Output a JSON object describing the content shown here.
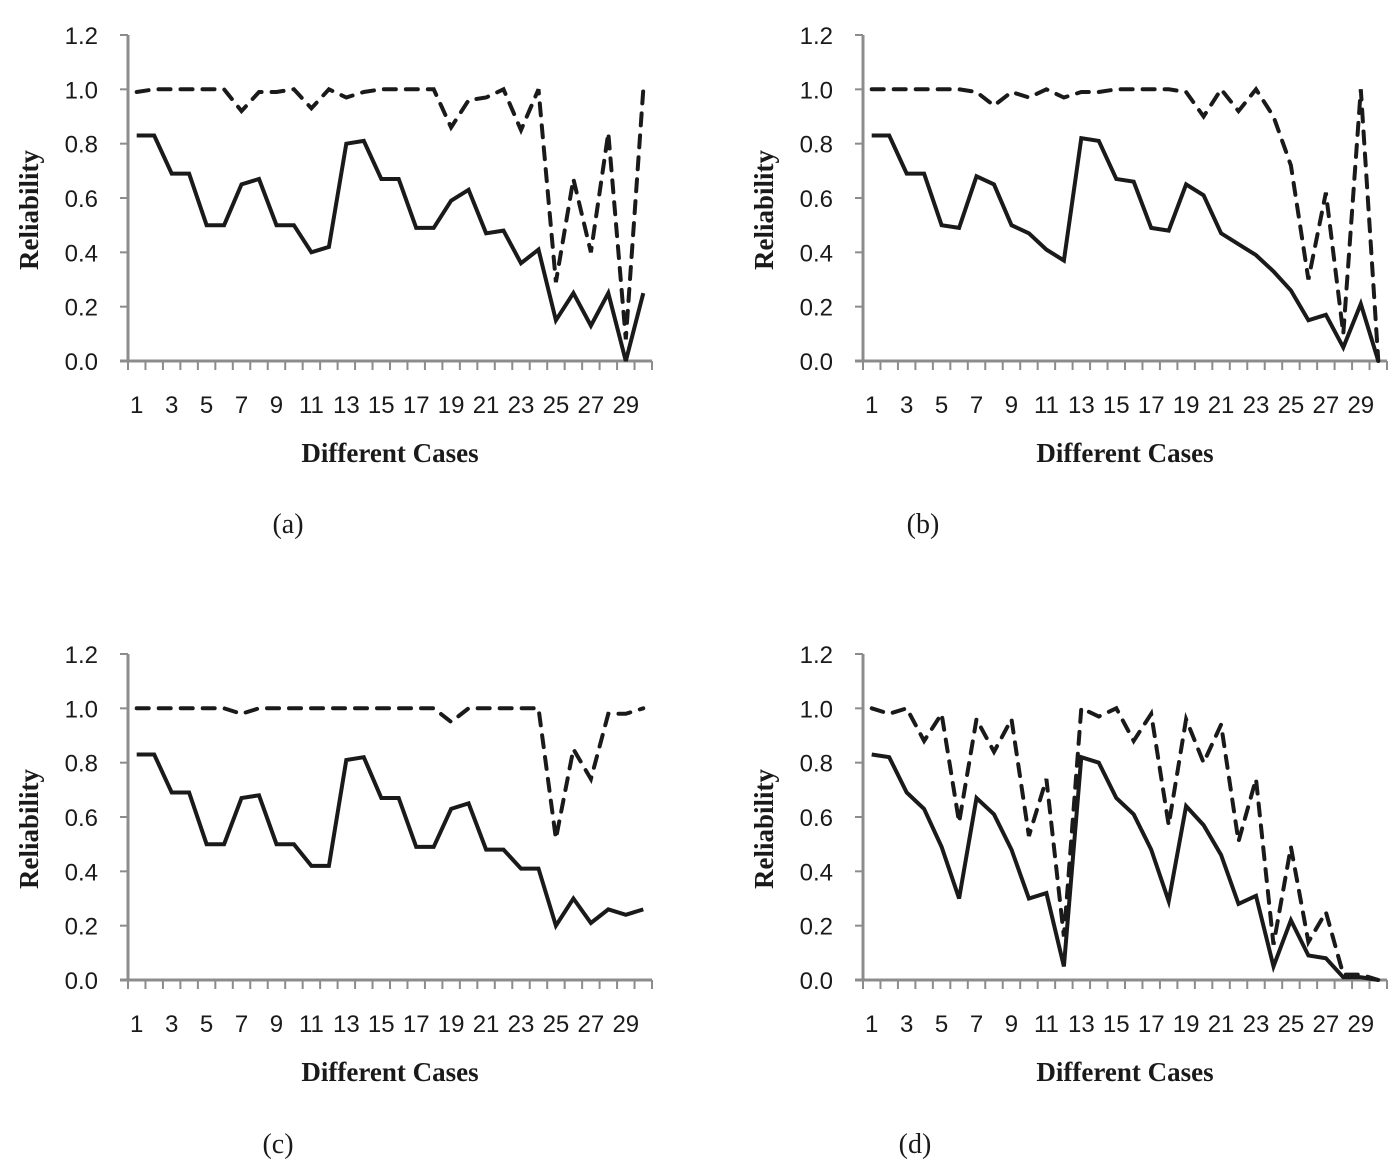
{
  "chart_data": [
    {
      "type": "line",
      "caption": "(a)",
      "xlabel": "Different Cases",
      "ylabel": "Reliability",
      "ylim": [
        0,
        1.2
      ],
      "yticks": [
        "0.0",
        "0.2",
        "0.4",
        "0.6",
        "0.8",
        "1.0",
        "1.2"
      ],
      "xtick_labels": [
        "1",
        "3",
        "5",
        "7",
        "9",
        "11",
        "13",
        "15",
        "17",
        "19",
        "21",
        "23",
        "25",
        "27",
        "29"
      ],
      "categories": [
        1,
        2,
        3,
        4,
        5,
        6,
        7,
        8,
        9,
        10,
        11,
        12,
        13,
        14,
        15,
        16,
        17,
        18,
        19,
        20,
        21,
        22,
        23,
        24,
        25,
        26,
        27,
        28,
        29,
        30
      ],
      "grid": false,
      "legend": "none",
      "series": [
        {
          "name": "solid",
          "style": "solid",
          "values": [
            0.83,
            0.83,
            0.69,
            0.69,
            0.5,
            0.5,
            0.65,
            0.67,
            0.5,
            0.5,
            0.4,
            0.42,
            0.8,
            0.81,
            0.67,
            0.67,
            0.49,
            0.49,
            0.59,
            0.63,
            0.47,
            0.48,
            0.36,
            0.41,
            0.15,
            0.25,
            0.13,
            0.25,
            0.0,
            0.25
          ]
        },
        {
          "name": "dashed",
          "style": "dashed",
          "values": [
            0.99,
            1.0,
            1.0,
            1.0,
            1.0,
            1.0,
            0.92,
            0.99,
            0.99,
            1.0,
            0.93,
            1.0,
            0.97,
            0.99,
            1.0,
            1.0,
            1.0,
            1.0,
            0.86,
            0.96,
            0.97,
            1.0,
            0.85,
            1.0,
            0.29,
            0.67,
            0.4,
            0.84,
            0.08,
            1.0
          ]
        }
      ]
    },
    {
      "type": "line",
      "caption": "(b)",
      "xlabel": "Different Cases",
      "ylabel": "Reliability",
      "ylim": [
        0,
        1.2
      ],
      "yticks": [
        "0.0",
        "0.2",
        "0.4",
        "0.6",
        "0.8",
        "1.0",
        "1.2"
      ],
      "xtick_labels": [
        "1",
        "3",
        "5",
        "7",
        "9",
        "11",
        "13",
        "15",
        "17",
        "19",
        "21",
        "23",
        "25",
        "27",
        "29"
      ],
      "categories": [
        1,
        2,
        3,
        4,
        5,
        6,
        7,
        8,
        9,
        10,
        11,
        12,
        13,
        14,
        15,
        16,
        17,
        18,
        19,
        20,
        21,
        22,
        23,
        24,
        25,
        26,
        27,
        28,
        29,
        30
      ],
      "grid": false,
      "legend": "none",
      "series": [
        {
          "name": "solid",
          "style": "solid",
          "values": [
            0.83,
            0.83,
            0.69,
            0.69,
            0.5,
            0.49,
            0.68,
            0.65,
            0.5,
            0.47,
            0.41,
            0.37,
            0.82,
            0.81,
            0.67,
            0.66,
            0.49,
            0.48,
            0.65,
            0.61,
            0.47,
            0.43,
            0.39,
            0.33,
            0.26,
            0.15,
            0.17,
            0.05,
            0.21,
            0.0
          ]
        },
        {
          "name": "dashed",
          "style": "dashed",
          "values": [
            1.0,
            1.0,
            1.0,
            1.0,
            1.0,
            1.0,
            0.99,
            0.94,
            0.99,
            0.97,
            1.0,
            0.97,
            0.99,
            0.99,
            1.0,
            1.0,
            1.0,
            1.0,
            0.99,
            0.9,
            1.0,
            0.92,
            1.0,
            0.9,
            0.72,
            0.3,
            0.62,
            0.1,
            1.0,
            0.0
          ]
        }
      ]
    },
    {
      "type": "line",
      "caption": "(c)",
      "xlabel": "Different Cases",
      "ylabel": "Reliability",
      "ylim": [
        0,
        1.2
      ],
      "yticks": [
        "0.0",
        "0.2",
        "0.4",
        "0.6",
        "0.8",
        "1.0",
        "1.2"
      ],
      "xtick_labels": [
        "1",
        "3",
        "5",
        "7",
        "9",
        "11",
        "13",
        "15",
        "17",
        "19",
        "21",
        "23",
        "25",
        "27",
        "29"
      ],
      "categories": [
        1,
        2,
        3,
        4,
        5,
        6,
        7,
        8,
        9,
        10,
        11,
        12,
        13,
        14,
        15,
        16,
        17,
        18,
        19,
        20,
        21,
        22,
        23,
        24,
        25,
        26,
        27,
        28,
        29,
        30
      ],
      "grid": false,
      "legend": "none",
      "series": [
        {
          "name": "solid",
          "style": "solid",
          "values": [
            0.83,
            0.83,
            0.69,
            0.69,
            0.5,
            0.5,
            0.67,
            0.68,
            0.5,
            0.5,
            0.42,
            0.42,
            0.81,
            0.82,
            0.67,
            0.67,
            0.49,
            0.49,
            0.63,
            0.65,
            0.48,
            0.48,
            0.41,
            0.41,
            0.2,
            0.3,
            0.21,
            0.26,
            0.24,
            0.26
          ]
        },
        {
          "name": "dashed",
          "style": "dashed",
          "values": [
            1.0,
            1.0,
            1.0,
            1.0,
            1.0,
            1.0,
            0.98,
            1.0,
            1.0,
            1.0,
            1.0,
            1.0,
            1.0,
            1.0,
            1.0,
            1.0,
            1.0,
            1.0,
            0.95,
            1.0,
            1.0,
            1.0,
            1.0,
            1.0,
            0.52,
            0.85,
            0.74,
            0.98,
            0.98,
            1.0
          ]
        }
      ]
    },
    {
      "type": "line",
      "caption": "(d)",
      "xlabel": "Different Cases",
      "ylabel": "Reliability",
      "ylim": [
        0,
        1.2
      ],
      "yticks": [
        "0.0",
        "0.2",
        "0.4",
        "0.6",
        "0.8",
        "1.0",
        "1.2"
      ],
      "xtick_labels": [
        "1",
        "3",
        "5",
        "7",
        "9",
        "11",
        "13",
        "15",
        "17",
        "19",
        "21",
        "23",
        "25",
        "27",
        "29"
      ],
      "categories": [
        1,
        2,
        3,
        4,
        5,
        6,
        7,
        8,
        9,
        10,
        11,
        12,
        13,
        14,
        15,
        16,
        17,
        18,
        19,
        20,
        21,
        22,
        23,
        24,
        25,
        26,
        27,
        28,
        29,
        30
      ],
      "grid": false,
      "legend": "none",
      "series": [
        {
          "name": "solid",
          "style": "solid",
          "values": [
            0.83,
            0.82,
            0.69,
            0.63,
            0.49,
            0.3,
            0.67,
            0.61,
            0.48,
            0.3,
            0.32,
            0.05,
            0.82,
            0.8,
            0.67,
            0.61,
            0.48,
            0.29,
            0.64,
            0.57,
            0.46,
            0.28,
            0.31,
            0.05,
            0.22,
            0.09,
            0.08,
            0.01,
            0.01,
            0.0
          ]
        },
        {
          "name": "dashed",
          "style": "dashed",
          "values": [
            1.0,
            0.98,
            1.0,
            0.88,
            0.98,
            0.58,
            0.96,
            0.84,
            0.96,
            0.53,
            0.74,
            0.16,
            1.0,
            0.97,
            1.0,
            0.88,
            0.98,
            0.57,
            0.96,
            0.8,
            0.94,
            0.51,
            0.74,
            0.13,
            0.49,
            0.14,
            0.25,
            0.02,
            0.02,
            0.0
          ]
        }
      ]
    }
  ]
}
